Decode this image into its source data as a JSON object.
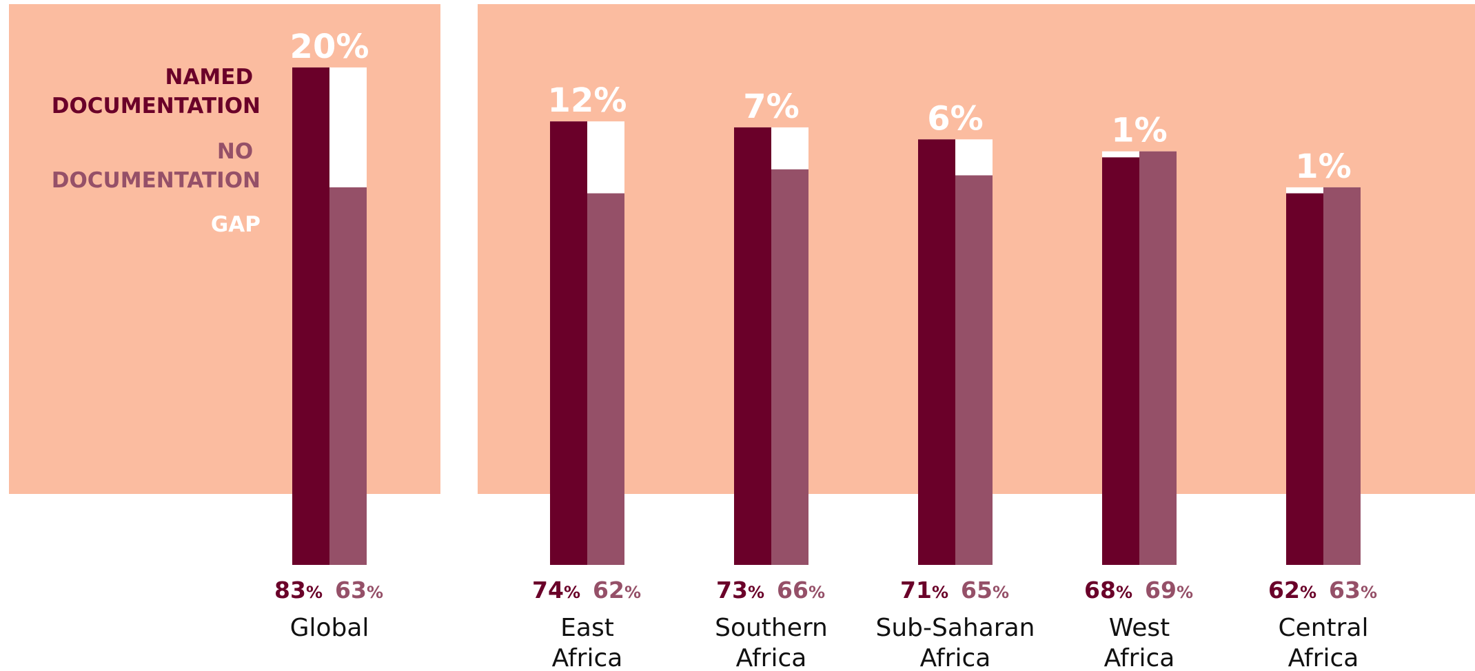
{
  "colors": {
    "panel": "#FBBCA0",
    "named": "#6A0029",
    "none": "#955068",
    "gap": "#FFFFFF",
    "text": "#111111"
  },
  "legend": {
    "named": [
      "NAMED",
      "DOCUMENTATION"
    ],
    "none": [
      "NO",
      "DOCUMENTATION"
    ],
    "gap": [
      "GAP"
    ]
  },
  "chart_data": {
    "type": "bar",
    "categories": [
      [
        "Global"
      ],
      [
        "East",
        "Africa"
      ],
      [
        "Southern",
        "Africa"
      ],
      [
        "Sub-Saharan",
        "Africa"
      ],
      [
        "West",
        "Africa"
      ],
      [
        "Central",
        "Africa"
      ]
    ],
    "series": [
      {
        "name": "NAMED DOCUMENTATION",
        "values": [
          83,
          74,
          73,
          71,
          68,
          62
        ]
      },
      {
        "name": "NO DOCUMENTATION",
        "values": [
          63,
          62,
          66,
          65,
          69,
          63
        ]
      }
    ],
    "gap_labels": [
      "20%",
      "12%",
      "7%",
      "6%",
      "1%",
      "1%"
    ],
    "value_unit": "%",
    "legend_position": "top-left"
  }
}
